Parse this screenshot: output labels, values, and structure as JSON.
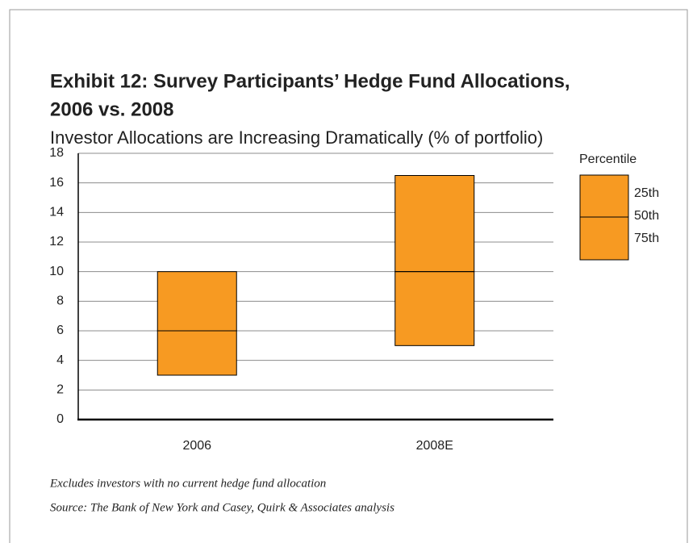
{
  "chart_data": {
    "type": "floating_box",
    "title": "Exhibit 12: Survey Participants’ Hedge Fund Allocations,",
    "title_line2": "2006 vs. 2008",
    "subtitle": "Investor Allocations are Increasing Dramatically (% of portfolio)",
    "categories": [
      "2006",
      "2008E"
    ],
    "legend_title": "Percentile",
    "color": "#f79a22",
    "series": [
      {
        "name": "25th",
        "values": [
          10,
          16.5
        ]
      },
      {
        "name": "50th",
        "values": [
          6,
          10
        ]
      },
      {
        "name": "75th",
        "values": [
          3,
          5
        ]
      }
    ],
    "ylim": [
      0,
      18
    ],
    "yticks": [
      0,
      2,
      4,
      6,
      8,
      10,
      12,
      14,
      16,
      18
    ],
    "grid": true,
    "footnotes": [
      "Excludes investors with no current hedge fund allocation",
      "Source: The Bank of New York and Casey, Quirk & Associates analysis"
    ]
  }
}
